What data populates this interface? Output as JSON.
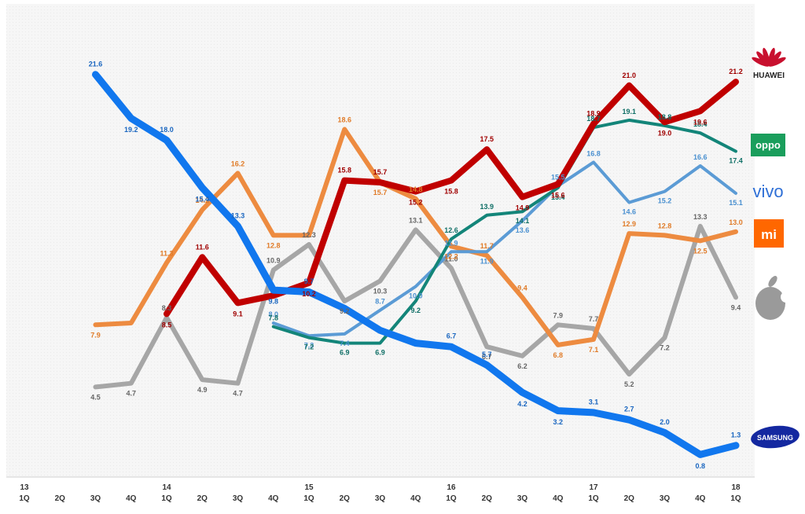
{
  "chart_data": {
    "type": "line",
    "title": "",
    "xlabel": "",
    "ylabel": "",
    "ylim": [
      0,
      23
    ],
    "grid": false,
    "x_ticks": [
      {
        "quarter": "1Q",
        "year": "13"
      },
      {
        "quarter": "2Q",
        "year": ""
      },
      {
        "quarter": "3Q",
        "year": ""
      },
      {
        "quarter": "4Q",
        "year": ""
      },
      {
        "quarter": "1Q",
        "year": "14"
      },
      {
        "quarter": "2Q",
        "year": ""
      },
      {
        "quarter": "3Q",
        "year": ""
      },
      {
        "quarter": "4Q",
        "year": ""
      },
      {
        "quarter": "1Q",
        "year": "15"
      },
      {
        "quarter": "2Q",
        "year": ""
      },
      {
        "quarter": "3Q",
        "year": ""
      },
      {
        "quarter": "4Q",
        "year": ""
      },
      {
        "quarter": "1Q",
        "year": "16"
      },
      {
        "quarter": "2Q",
        "year": ""
      },
      {
        "quarter": "3Q",
        "year": ""
      },
      {
        "quarter": "4Q",
        "year": ""
      },
      {
        "quarter": "1Q",
        "year": "17"
      },
      {
        "quarter": "2Q",
        "year": ""
      },
      {
        "quarter": "3Q",
        "year": ""
      },
      {
        "quarter": "4Q",
        "year": ""
      },
      {
        "quarter": "1Q",
        "year": "18"
      }
    ],
    "series": [
      {
        "name": "Apple",
        "color": "#a6a6a6",
        "width": 6,
        "label_color": "#666666",
        "values": [
          null,
          null,
          4.5,
          4.7,
          8.3,
          4.9,
          4.7,
          10.9,
          12.3,
          9.2,
          10.3,
          13.1,
          11.0,
          6.7,
          6.2,
          7.9,
          7.7,
          5.2,
          7.2,
          13.3,
          9.4
        ],
        "labels": [
          null,
          null,
          "4.5",
          "4.7",
          "8.3",
          "4.9",
          "4.7",
          "10.9",
          "12.3",
          "9.2",
          "10.3",
          "13.1",
          "11.0",
          "6.7",
          "6.2",
          "7.9",
          "7.7",
          "5.2",
          "7.2",
          "13.3",
          "9.4"
        ]
      },
      {
        "name": "Xiaomi",
        "color": "#ed8b40",
        "width": 6,
        "label_color": "#e07b28",
        "values": [
          null,
          null,
          7.9,
          8.0,
          11.3,
          14.2,
          16.2,
          12.8,
          12.8,
          18.6,
          15.7,
          14.8,
          12.2,
          11.7,
          9.4,
          6.8,
          7.1,
          12.9,
          12.8,
          12.5,
          13.0
        ],
        "labels": [
          null,
          null,
          "7.9",
          "",
          "11.3",
          "14.2",
          "16.2",
          "12.8",
          "",
          "18.6",
          "15.7",
          "14.8",
          "12.2",
          "11.7",
          "9.4",
          "6.8",
          "7.1",
          "12.9",
          "12.8",
          "12.5",
          "13.0"
        ]
      },
      {
        "name": "vivo",
        "color": "#5b9bd5",
        "width": 4,
        "label_color": "#4a90d0",
        "values": [
          null,
          null,
          null,
          null,
          null,
          null,
          null,
          8.0,
          7.3,
          7.4,
          8.7,
          10.0,
          11.9,
          11.9,
          13.6,
          15.5,
          16.8,
          14.6,
          15.2,
          16.6,
          15.1
        ],
        "labels": [
          null,
          null,
          null,
          null,
          null,
          null,
          null,
          "8.0",
          "7.3",
          "7.4",
          "8.7",
          "10.0",
          "11.9",
          "11.9",
          "13.6",
          "15.5",
          "16.8",
          "14.6",
          "15.2",
          "16.6",
          "15.1"
        ]
      },
      {
        "name": "OPPO",
        "color": "#138579",
        "width": 4,
        "label_color": "#0f6f66",
        "values": [
          null,
          null,
          null,
          null,
          null,
          null,
          null,
          7.8,
          7.2,
          6.9,
          6.9,
          9.2,
          12.6,
          13.9,
          14.1,
          15.4,
          18.7,
          19.1,
          18.8,
          18.4,
          17.4
        ],
        "labels": [
          null,
          null,
          null,
          null,
          null,
          null,
          null,
          "7.8",
          "7.2",
          "6.9",
          "6.9",
          "9.2",
          "12.6",
          "13.9",
          "14.1",
          "15.4",
          "18.7",
          "19.1",
          "18.8",
          "18.4",
          "17.4"
        ]
      },
      {
        "name": "Huawei",
        "color": "#c00000",
        "width": 8,
        "label_color": "#a00000",
        "values": [
          null,
          null,
          null,
          null,
          8.5,
          11.6,
          9.1,
          9.5,
          10.2,
          15.8,
          15.7,
          15.2,
          15.8,
          17.5,
          14.9,
          15.6,
          18.9,
          21.0,
          19.0,
          19.6,
          21.2
        ],
        "labels": [
          null,
          null,
          null,
          null,
          "8.5",
          "11.6",
          "9.1",
          "",
          "10.2",
          "15.8",
          "15.7",
          "15.2",
          "15.8",
          "17.5",
          "14.9",
          "15.6",
          "18.9",
          "21.0",
          "19.0",
          "19.6",
          "21.2"
        ]
      },
      {
        "name": "Samsung",
        "color": "#1177ee",
        "width": 9,
        "label_color": "#1a66c0",
        "values": [
          null,
          null,
          21.6,
          19.2,
          18.0,
          15.4,
          13.3,
          9.8,
          9.7,
          8.8,
          7.6,
          6.9,
          6.7,
          5.7,
          4.2,
          3.2,
          3.1,
          2.7,
          2.0,
          0.8,
          1.3
        ],
        "labels": [
          null,
          null,
          "21.6",
          "19.2",
          "18.0",
          "15.4",
          "13.3",
          "9.8",
          "9.7",
          "",
          "",
          "",
          "6.7",
          "5.7",
          "4.2",
          "3.2",
          "3.1",
          "2.7",
          "2.0",
          "0.8",
          "1.3"
        ]
      }
    ],
    "legend": [
      {
        "name": "Huawei",
        "text": "HUAWEI",
        "icon": "huawei-logo-icon",
        "color": "#c8102e"
      },
      {
        "name": "OPPO",
        "text": "oppo",
        "icon": "oppo-logo-icon",
        "color": "#1a9e5c"
      },
      {
        "name": "vivo",
        "text": "vivo",
        "icon": "vivo-logo-icon",
        "color": "#2e6fd6"
      },
      {
        "name": "Xiaomi",
        "text": "mi",
        "icon": "mi-logo-icon",
        "color": "#ff6700"
      },
      {
        "name": "Apple",
        "text": "",
        "icon": "apple-logo-icon",
        "color": "#9a9a9a"
      },
      {
        "name": "Samsung",
        "text": "SAMSUNG",
        "icon": "samsung-logo-icon",
        "color": "#1428a0"
      }
    ]
  }
}
